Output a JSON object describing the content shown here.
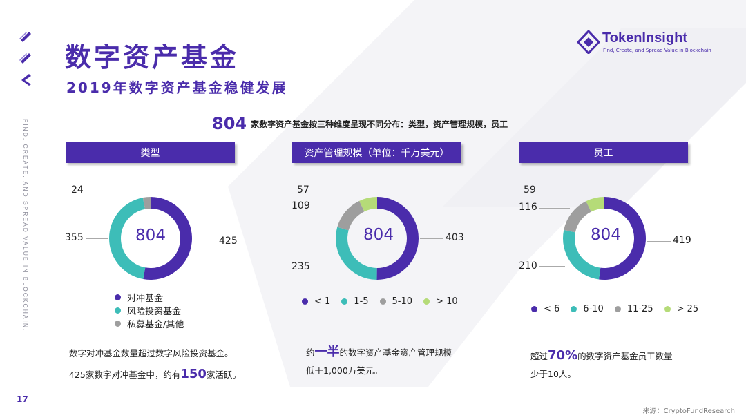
{
  "header": {
    "title": "数字资产基金",
    "subtitle": "2019年数字资产基金稳健发展"
  },
  "logo": {
    "name": "TokenInsight",
    "tagline": "Find, Create, and Spread Value in Blockchain"
  },
  "side_text": "FIND, CREATE, AND SPREAD VALUE IN BLOCKCHAIN.",
  "headline": {
    "number": "804",
    "text": "家数字资产基金按三种维度呈现不同分布：类型，资产管理规模，员工"
  },
  "colors": {
    "brand": "#4a2cab",
    "teal": "#3dbdb8",
    "gray": "#9e9e9e",
    "lime": "#b5db78"
  },
  "chart_data": [
    {
      "type": "pie",
      "title": "类型",
      "center_label": "804",
      "categories": [
        "对冲基金",
        "风险投资基金",
        "私募基金/其他"
      ],
      "values": [
        425,
        355,
        24
      ],
      "value_labels": [
        "425",
        "355",
        "24"
      ],
      "colors": [
        "#4a2cab",
        "#3dbdb8",
        "#9e9e9e"
      ]
    },
    {
      "type": "pie",
      "title": "资产管理规模（单位：千万美元）",
      "center_label": "804",
      "categories": [
        "< 1",
        "1-5",
        "5-10",
        "> 10"
      ],
      "values": [
        403,
        235,
        109,
        57
      ],
      "value_labels": [
        "403",
        "235",
        "109",
        "57"
      ],
      "colors": [
        "#4a2cab",
        "#3dbdb8",
        "#9e9e9e",
        "#b5db78"
      ]
    },
    {
      "type": "pie",
      "title": "员工",
      "center_label": "804",
      "categories": [
        "< 6",
        "6-10",
        "11-25",
        "> 25"
      ],
      "values": [
        419,
        210,
        116,
        59
      ],
      "value_labels": [
        "419",
        "210",
        "116",
        "59"
      ],
      "colors": [
        "#4a2cab",
        "#3dbdb8",
        "#9e9e9e",
        "#b5db78"
      ]
    }
  ],
  "notes": {
    "n1_line1": "数字对冲基金数量超过数字风险投资基金。",
    "n1_line2_pre": "425家数字对冲基金中，约有",
    "n1_line2_em": "150",
    "n1_line2_post": "家活跃。",
    "n2_line1_pre": "约",
    "n2_line1_em": "一半",
    "n2_line1_post": "的数字资产基金资产管理规模",
    "n2_line2": "低于1,000万美元。",
    "n3_line1_pre": "超过",
    "n3_line1_em": "70%",
    "n3_line1_post": "的数字资产基金员工数量",
    "n3_line2": "少于10人。"
  },
  "page_number": "17",
  "source": "来源：CryptoFundResearch"
}
